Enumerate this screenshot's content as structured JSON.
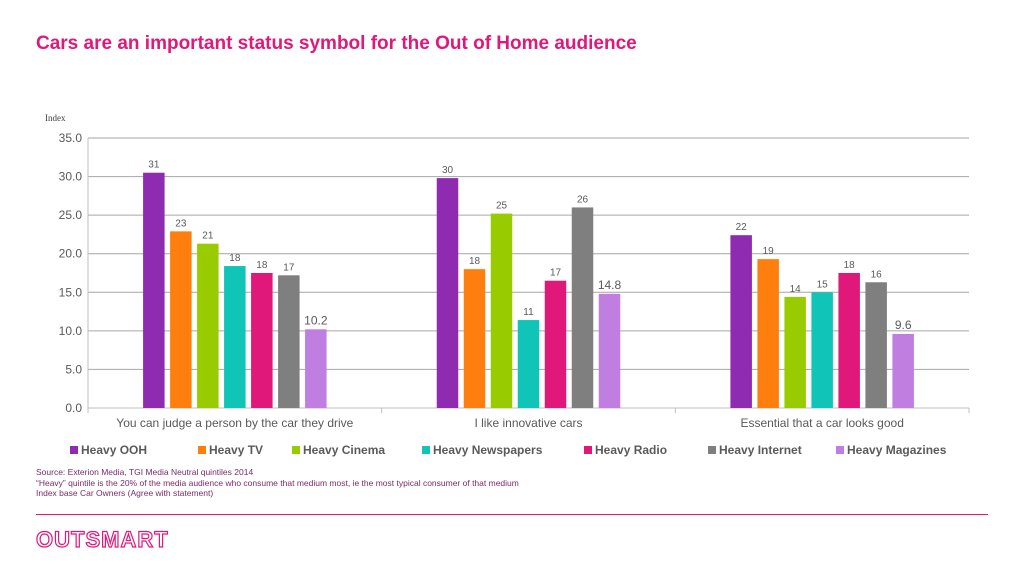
{
  "title": "Cars are an important status symbol for the Out of Home audience",
  "footnotes": [
    "Source: Exterion Media, TGI Media Neutral quintiles 2014",
    "“Heavy” quintile is the 20% of the media audience who consume that medium most, ie the most typical consumer of that medium",
    "Index base Car Owners (Agree with statement)"
  ],
  "logo": "OUTSMART",
  "chart_data": {
    "type": "bar",
    "title": "",
    "ylabel": "Index",
    "xlabel": "",
    "ylim": [
      0,
      35
    ],
    "yticks": [
      "0.0",
      "5.0",
      "10.0",
      "15.0",
      "20.0",
      "25.0",
      "30.0",
      "35.0"
    ],
    "grid": true,
    "legend_position": "bottom",
    "categories": [
      "You can judge a person by the car they drive",
      "I like innovative cars",
      "Essential that a car looks good"
    ],
    "series": [
      {
        "name": "Heavy OOH",
        "color": "#8e2bb0",
        "values": [
          30.5,
          29.8,
          22.4
        ],
        "labels": [
          "31",
          "30",
          "22"
        ]
      },
      {
        "name": "Heavy TV",
        "color": "#ff7f0e",
        "values": [
          22.9,
          18.0,
          19.3
        ],
        "labels": [
          "23",
          "18",
          "19"
        ]
      },
      {
        "name": "Heavy Cinema",
        "color": "#99cc00",
        "values": [
          21.3,
          25.2,
          14.4
        ],
        "labels": [
          "21",
          "25",
          "14"
        ]
      },
      {
        "name": "Heavy Newspapers",
        "color": "#11c4b8",
        "values": [
          18.4,
          11.4,
          15.0
        ],
        "labels": [
          "18",
          "11",
          "15"
        ]
      },
      {
        "name": "Heavy Radio",
        "color": "#e0187a",
        "values": [
          17.5,
          16.5,
          17.5
        ],
        "labels": [
          "18",
          "17",
          "18"
        ]
      },
      {
        "name": "Heavy Internet",
        "color": "#7f7f7f",
        "values": [
          17.2,
          26.0,
          16.3
        ],
        "labels": [
          "17",
          "26",
          "16"
        ]
      },
      {
        "name": "Heavy Magazines",
        "color": "#c07ee0",
        "values": [
          10.2,
          14.8,
          9.6
        ],
        "labels": [
          "10.2",
          "14.8",
          "9.6"
        ]
      }
    ]
  }
}
